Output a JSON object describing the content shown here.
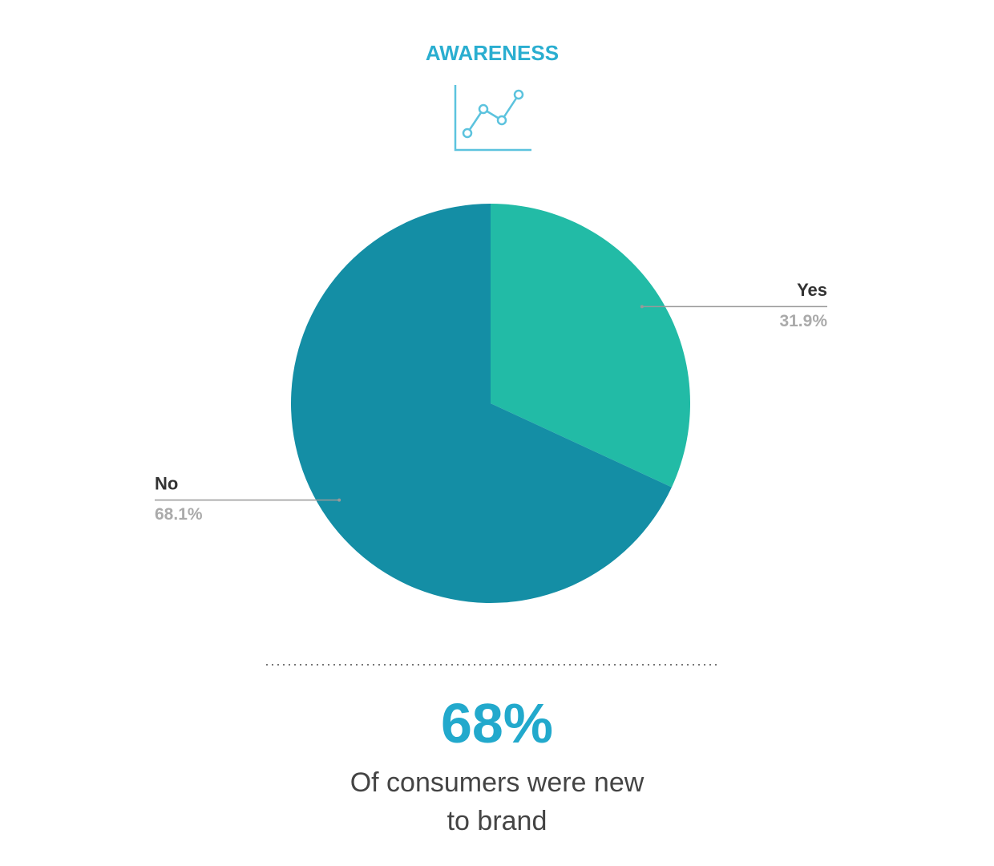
{
  "chart_data": {
    "type": "pie",
    "title": "AWARENESS",
    "categories": [
      "Yes",
      "No"
    ],
    "values": [
      31.9,
      68.1
    ],
    "value_labels": [
      "31.9%",
      "68.1%"
    ],
    "colors": [
      "#22bba6",
      "#148ea5"
    ]
  },
  "callout": {
    "stat": "68%",
    "text": "Of consumers were new to brand"
  }
}
